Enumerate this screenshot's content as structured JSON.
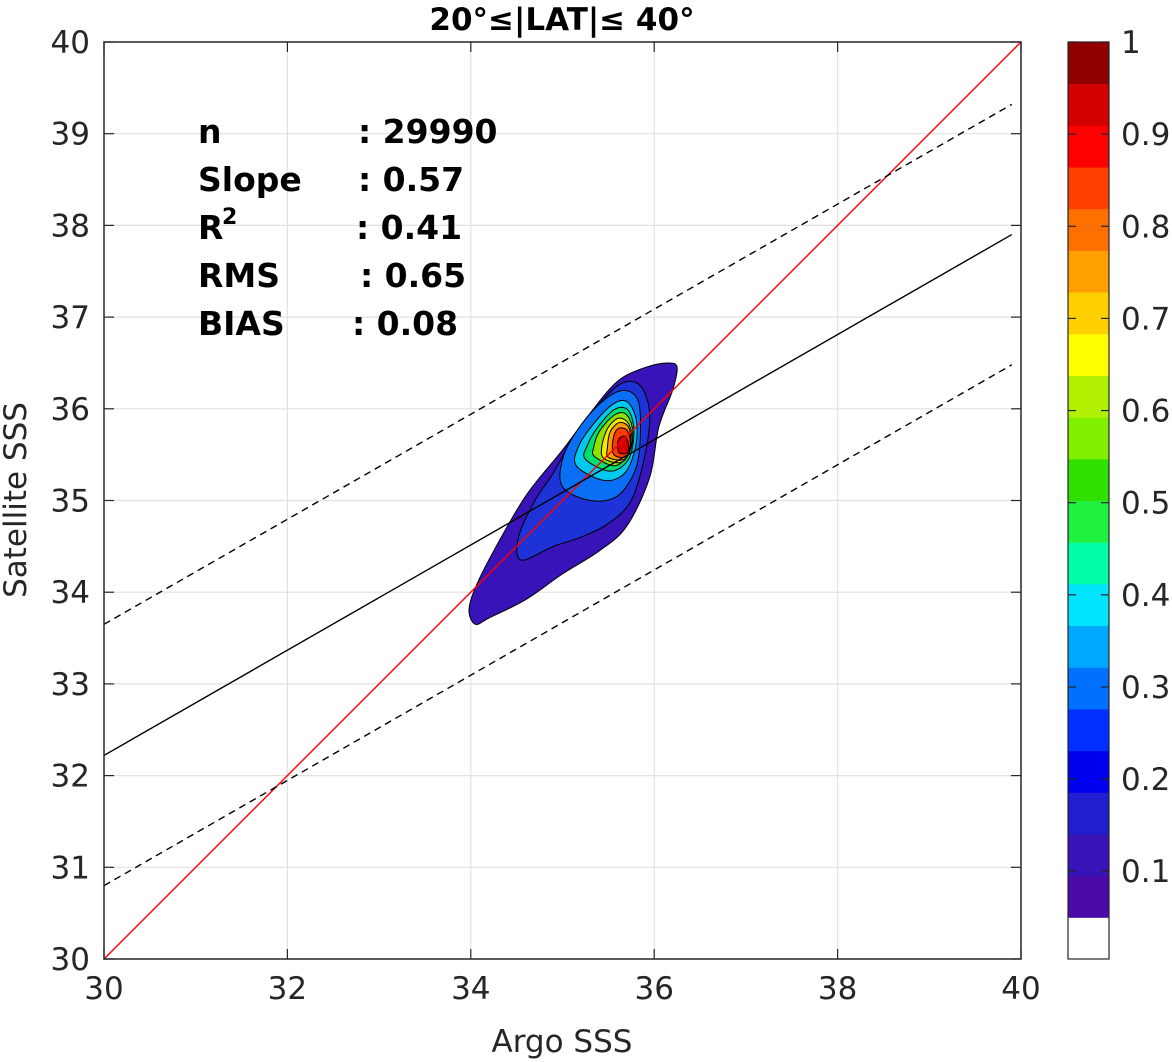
{
  "chart_data": {
    "type": "contour-scatter",
    "title": "20°≤|LAT|≤ 40°",
    "xlabel": "Argo SSS",
    "ylabel": "Satellite SSS",
    "xlim": [
      30,
      40
    ],
    "ylim": [
      30,
      40
    ],
    "xticks": [
      "30",
      "32",
      "34",
      "36",
      "38",
      "40"
    ],
    "yticks": [
      "30",
      "31",
      "32",
      "33",
      "34",
      "35",
      "36",
      "37",
      "38",
      "39",
      "40"
    ],
    "grid": true,
    "stats": [
      {
        "label": "n",
        "value": ": 29990"
      },
      {
        "label": "Slope",
        "value": ": 0.57"
      },
      {
        "label": "R",
        "sup": "2",
        "value": ": 0.41"
      },
      {
        "label": "RMS",
        "value": ": 0.65"
      },
      {
        "label": "BIAS",
        "value": ": 0.08"
      }
    ],
    "lines": [
      {
        "name": "one-to-one",
        "color": "#ff0000",
        "dash": "solid",
        "x": [
          30,
          40
        ],
        "y": [
          30,
          40
        ]
      },
      {
        "name": "regression",
        "color": "#000000",
        "dash": "solid",
        "x": [
          30,
          39.9
        ],
        "y": [
          32.22,
          37.9
        ]
      },
      {
        "name": "upper-bound",
        "color": "#000000",
        "dash": "dashed",
        "x": [
          30,
          39.9
        ],
        "y": [
          33.65,
          39.32
        ]
      },
      {
        "name": "lower-bound",
        "color": "#000000",
        "dash": "dashed",
        "x": [
          30,
          39.9
        ],
        "y": [
          30.8,
          36.48
        ]
      }
    ],
    "density": {
      "center": [
        35.68,
        35.62
      ],
      "levels": [
        {
          "level": 0.05,
          "color": "#3713b8",
          "points": [
            [
              34.05,
              33.65
            ],
            [
              34.2,
              33.72
            ],
            [
              34.6,
              33.92
            ],
            [
              35.0,
              34.2
            ],
            [
              35.4,
              34.45
            ],
            [
              35.7,
              34.72
            ],
            [
              35.95,
              35.25
            ],
            [
              36.05,
              35.8
            ],
            [
              36.2,
              36.2
            ],
            [
              36.25,
              36.45
            ],
            [
              36.15,
              36.5
            ],
            [
              35.9,
              36.45
            ],
            [
              35.6,
              36.3
            ],
            [
              35.3,
              35.95
            ],
            [
              35.0,
              35.55
            ],
            [
              34.6,
              35.05
            ],
            [
              34.25,
              34.45
            ],
            [
              34.05,
              34.05
            ],
            [
              33.98,
              33.8
            ]
          ]
        },
        {
          "level": 0.15,
          "color": "#1d33d8",
          "points": [
            [
              34.55,
              34.35
            ],
            [
              34.9,
              34.5
            ],
            [
              35.2,
              34.6
            ],
            [
              35.5,
              34.75
            ],
            [
              35.75,
              35.0
            ],
            [
              35.9,
              35.5
            ],
            [
              35.95,
              35.95
            ],
            [
              35.85,
              36.25
            ],
            [
              35.65,
              36.28
            ],
            [
              35.4,
              36.05
            ],
            [
              35.1,
              35.65
            ],
            [
              34.9,
              35.3
            ],
            [
              34.7,
              35.0
            ],
            [
              34.52,
              34.6
            ]
          ]
        },
        {
          "level": 0.25,
          "color": "#0a6ff4",
          "points": [
            [
              35.0,
              35.15
            ],
            [
              35.3,
              35.0
            ],
            [
              35.6,
              35.05
            ],
            [
              35.8,
              35.35
            ],
            [
              35.85,
              35.75
            ],
            [
              35.82,
              36.1
            ],
            [
              35.65,
              36.2
            ],
            [
              35.4,
              36.05
            ],
            [
              35.15,
              35.75
            ],
            [
              35.0,
              35.45
            ]
          ]
        },
        {
          "level": 0.35,
          "color": "#00c8ee",
          "points": [
            [
              35.15,
              35.38
            ],
            [
              35.45,
              35.22
            ],
            [
              35.68,
              35.3
            ],
            [
              35.8,
              35.6
            ],
            [
              35.8,
              35.9
            ],
            [
              35.7,
              36.08
            ],
            [
              35.55,
              36.05
            ],
            [
              35.35,
              35.85
            ],
            [
              35.18,
              35.6
            ]
          ]
        },
        {
          "level": 0.45,
          "color": "#00e070",
          "points": [
            [
              35.25,
              35.45
            ],
            [
              35.52,
              35.32
            ],
            [
              35.72,
              35.45
            ],
            [
              35.78,
              35.75
            ],
            [
              35.72,
              35.98
            ],
            [
              35.58,
              36.0
            ],
            [
              35.4,
              35.82
            ],
            [
              35.27,
              35.6
            ]
          ]
        },
        {
          "level": 0.55,
          "color": "#8ee000",
          "points": [
            [
              35.35,
              35.48
            ],
            [
              35.58,
              35.38
            ],
            [
              35.74,
              35.55
            ],
            [
              35.76,
              35.8
            ],
            [
              35.68,
              35.95
            ],
            [
              35.55,
              35.92
            ],
            [
              35.4,
              35.75
            ],
            [
              35.34,
              35.58
            ]
          ]
        },
        {
          "level": 0.65,
          "color": "#f2e800",
          "points": [
            [
              35.45,
              35.46
            ],
            [
              35.65,
              35.42
            ],
            [
              35.75,
              35.6
            ],
            [
              35.73,
              35.82
            ],
            [
              35.62,
              35.9
            ],
            [
              35.5,
              35.8
            ],
            [
              35.43,
              35.6
            ]
          ]
        },
        {
          "level": 0.75,
          "color": "#ff9a00",
          "points": [
            [
              35.5,
              35.47
            ],
            [
              35.68,
              35.45
            ],
            [
              35.74,
              35.62
            ],
            [
              35.72,
              35.8
            ],
            [
              35.62,
              35.85
            ],
            [
              35.52,
              35.75
            ],
            [
              35.49,
              35.58
            ]
          ]
        },
        {
          "level": 0.85,
          "color": "#ff3a00",
          "points": [
            [
              35.56,
              35.5
            ],
            [
              35.7,
              35.48
            ],
            [
              35.74,
              35.63
            ],
            [
              35.7,
              35.77
            ],
            [
              35.6,
              35.78
            ],
            [
              35.55,
              35.66
            ]
          ]
        },
        {
          "level": 0.95,
          "color": "#d40000",
          "points": [
            [
              35.62,
              35.52
            ],
            [
              35.71,
              35.52
            ],
            [
              35.72,
              35.62
            ],
            [
              35.68,
              35.7
            ],
            [
              35.62,
              35.68
            ],
            [
              35.6,
              35.6
            ]
          ]
        }
      ]
    },
    "colorbar": {
      "ticks": [
        "0.1",
        "0.2",
        "0.3",
        "0.4",
        "0.5",
        "0.6",
        "0.7",
        "0.8",
        "0.9",
        "1"
      ],
      "colors": [
        "#ffffff",
        "#4b0aa8",
        "#3713b8",
        "#1f1fd0",
        "#0000f0",
        "#0030ff",
        "#0070ff",
        "#00a8ff",
        "#00e4ff",
        "#00ffa8",
        "#20f040",
        "#30e000",
        "#80f000",
        "#b0f000",
        "#ffff00",
        "#ffd000",
        "#ffa000",
        "#ff7000",
        "#ff4000",
        "#ff0000",
        "#d40000",
        "#900000"
      ]
    }
  }
}
